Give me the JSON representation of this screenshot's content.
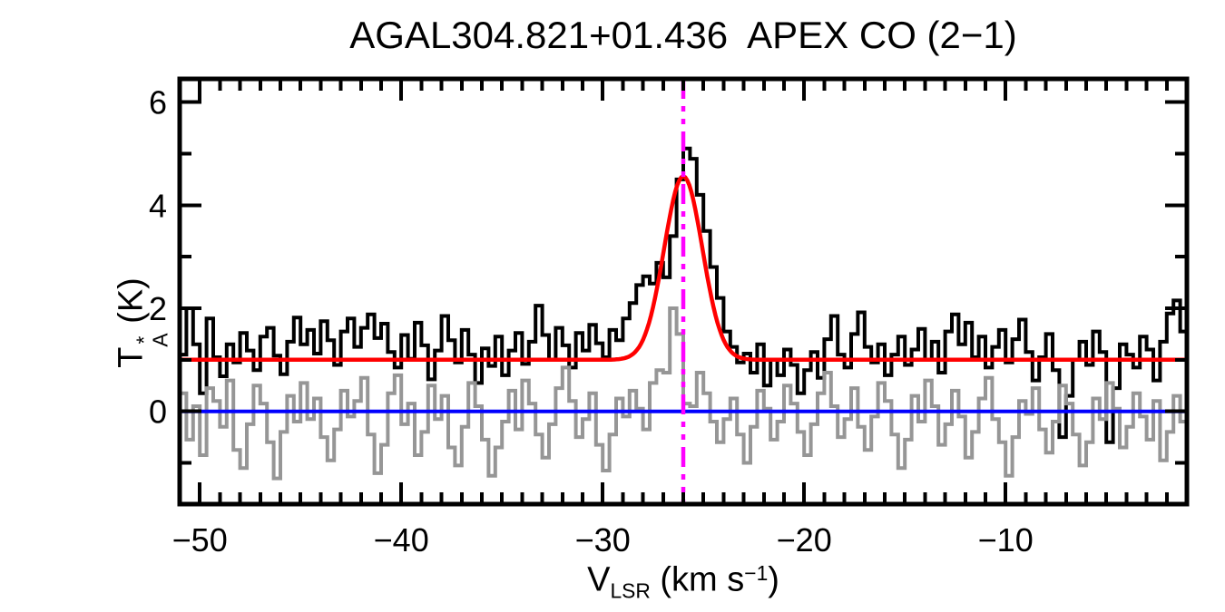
{
  "figure": {
    "kind": "spectral-line-plot",
    "background": "#ffffff"
  },
  "chart_data": {
    "type": "line",
    "subtype": "histogram-step-spectrum",
    "title": "AGAL304.821+01.436  APEX CO (2−1)",
    "xlabel": "V_LSR (km s^-1)",
    "ylabel": "T*_A (K)",
    "xlabel_parts": {
      "base": "V",
      "sub": "LSR",
      "mid": " (km s",
      "sup": "−1",
      "end": ")"
    },
    "ylabel_parts": {
      "base": "T",
      "sup": "*",
      "sub": "A",
      "unit": " (K)"
    },
    "x_range": [
      -51.0,
      -1.0
    ],
    "y_range": [
      -1.8,
      6.45
    ],
    "x_major_ticks": [
      -50,
      -40,
      -30,
      -20,
      -10
    ],
    "x_minor_step": 1,
    "y_major_ticks": [
      0,
      2,
      4,
      6
    ],
    "y_minor_step": 1,
    "grid": false,
    "legend": "none",
    "v_start_kms": -51.0,
    "bin_width_kms": 0.3333,
    "series": [
      {
        "name": "spectrum-upper-black",
        "color": "#000000",
        "style": "histogram",
        "baseline_K": 1.0,
        "values": [
          1.1,
          2.0,
          1.3,
          0.35,
          1.8,
          1.05,
          0.68,
          1.3,
          0.95,
          1.52,
          1.18,
          0.8,
          1.45,
          1.62,
          1.08,
          0.72,
          1.35,
          1.82,
          1.3,
          1.58,
          1.12,
          1.75,
          1.38,
          0.9,
          1.55,
          1.8,
          1.25,
          1.62,
          1.88,
          1.42,
          1.7,
          1.15,
          0.85,
          1.48,
          1.02,
          1.72,
          1.28,
          0.62,
          1.18,
          1.85,
          1.38,
          0.95,
          1.58,
          1.1,
          0.55,
          1.22,
          0.88,
          1.45,
          0.7,
          1.18,
          1.52,
          0.92,
          1.35,
          2.05,
          1.48,
          1.0,
          1.62,
          1.28,
          0.85,
          1.52,
          1.18,
          1.68,
          1.32,
          1.05,
          1.58,
          1.38,
          1.8,
          2.1,
          2.45,
          2.62,
          2.48,
          2.88,
          2.6,
          3.4,
          4.5,
          5.1,
          4.9,
          4.2,
          3.5,
          2.8,
          2.2,
          1.55,
          1.25,
          0.95,
          1.12,
          0.75,
          1.3,
          0.5,
          1.0,
          0.7,
          1.2,
          0.9,
          0.35,
          0.8,
          1.15,
          0.65,
          1.4,
          1.85,
          1.1,
          0.85,
          1.5,
          1.92,
          1.25,
          0.95,
          1.3,
          0.7,
          1.1,
          1.45,
          0.9,
          1.2,
          1.6,
          1.0,
          1.35,
          0.75,
          1.55,
          1.88,
          1.3,
          1.72,
          1.05,
          1.45,
          0.85,
          1.25,
          1.58,
          0.95,
          1.4,
          1.78,
          1.15,
          0.6,
          1.05,
          1.5,
          0.8,
          -0.5,
          0.3,
          1.0,
          1.35,
          0.9,
          1.55,
          1.15,
          -0.6,
          0.45,
          1.3,
          1.1,
          0.85,
          1.45,
          1.2,
          0.6,
          1.35,
          1.9,
          2.15,
          1.55
        ]
      },
      {
        "name": "spectrum-lower-gray",
        "color": "#969696",
        "style": "histogram",
        "baseline_K": 0.0,
        "values": [
          0.35,
          -0.55,
          0.1,
          -0.85,
          0.45,
          0.2,
          -0.3,
          0.6,
          -0.75,
          -1.1,
          -0.25,
          0.5,
          0.15,
          -0.6,
          -1.3,
          -0.4,
          0.3,
          -0.2,
          0.55,
          -0.15,
          0.25,
          -0.5,
          -0.95,
          -0.35,
          0.4,
          -0.1,
          0.2,
          0.65,
          -0.45,
          -1.2,
          -0.65,
          0.35,
          0.7,
          -0.25,
          0.15,
          -0.85,
          -0.4,
          0.5,
          -0.15,
          0.3,
          -0.7,
          -1.05,
          -0.3,
          0.55,
          0.1,
          -0.55,
          -1.25,
          -0.7,
          -0.2,
          0.4,
          -0.35,
          0.6,
          0.15,
          -0.45,
          -0.9,
          -0.25,
          0.45,
          0.85,
          0.2,
          -0.5,
          -0.15,
          0.35,
          -0.65,
          -1.15,
          -0.45,
          0.25,
          -0.1,
          0.4,
          0.05,
          -0.35,
          0.55,
          0.8,
          0.75,
          2.0,
          1.5,
          0.15,
          0.1,
          0.75,
          0.35,
          -0.2,
          -0.6,
          -0.15,
          0.25,
          -0.45,
          -1.0,
          -0.3,
          0.4,
          0.05,
          -0.55,
          -0.2,
          0.5,
          0.15,
          -0.4,
          -0.85,
          -0.25,
          0.35,
          0.75,
          0.1,
          -0.5,
          -0.15,
          0.45,
          -0.3,
          -0.75,
          -0.1,
          0.55,
          0.2,
          -0.45,
          -1.1,
          -0.55,
          0.3,
          -0.2,
          0.6,
          0.1,
          -0.65,
          -0.25,
          0.4,
          -0.1,
          -0.9,
          -0.4,
          0.25,
          0.65,
          -0.15,
          -0.6,
          -1.25,
          -0.5,
          0.2,
          -0.05,
          0.45,
          -0.35,
          -0.8,
          -0.2,
          0.5,
          0.15,
          -0.45,
          -1.05,
          -0.6,
          0.25,
          -0.15,
          0.55,
          0.05,
          -0.7,
          -0.3,
          0.35,
          -0.1,
          -0.55,
          0.2,
          -0.95,
          -0.4,
          0.3,
          -0.2
        ]
      }
    ],
    "gaussian_fit": {
      "name": "gaussian-fit",
      "color": "#ff0000",
      "baseline_K": 1.0,
      "amplitude_K": 3.56,
      "center_kms": -26.0,
      "sigma_kms": 0.95
    },
    "zero_line": {
      "name": "zero-baseline",
      "y_K": 0,
      "color": "#0000ff"
    },
    "vlsr_marker": {
      "name": "vlsr-marker",
      "x_kms": -26.0,
      "color": "#ff00ff",
      "line_style": "dash-dot-dot"
    }
  },
  "colors": {
    "frame": "#000000",
    "spectrum_black": "#000000",
    "spectrum_gray": "#969696",
    "fit_red": "#ff0000",
    "zero_blue": "#0000ff",
    "marker_magenta": "#ff00ff"
  }
}
